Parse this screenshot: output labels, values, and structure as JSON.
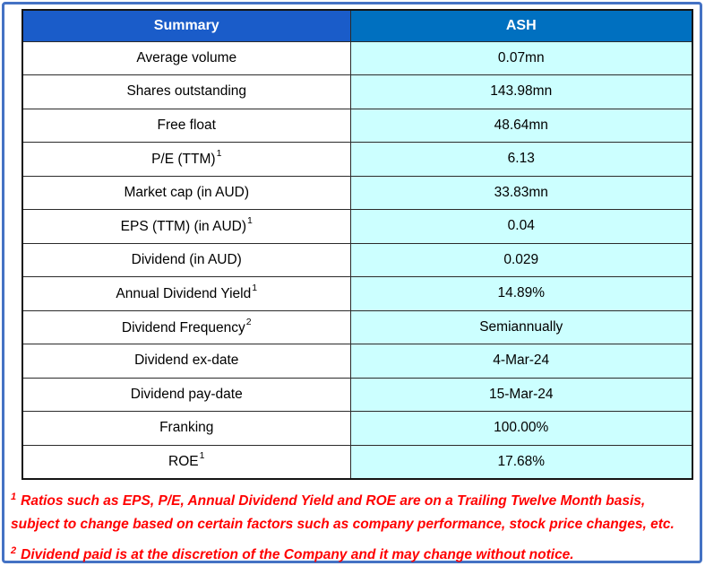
{
  "table": {
    "header": {
      "summary": "Summary",
      "ticker": "ASH"
    },
    "rows": [
      {
        "label": "Average volume",
        "sup": "",
        "value": "0.07mn"
      },
      {
        "label": "Shares outstanding",
        "sup": "",
        "value": "143.98mn"
      },
      {
        "label": "Free float",
        "sup": "",
        "value": "48.64mn"
      },
      {
        "label": "P/E (TTM)",
        "sup": "1",
        "value": "6.13"
      },
      {
        "label": "Market cap (in AUD)",
        "sup": "",
        "value": "33.83mn"
      },
      {
        "label": "EPS (TTM) (in AUD)",
        "sup": "1",
        "value": "0.04"
      },
      {
        "label": "Dividend (in AUD)",
        "sup": "",
        "value": "0.029"
      },
      {
        "label": "Annual Dividend Yield",
        "sup": "1",
        "value": "14.89%"
      },
      {
        "label": "Dividend Frequency",
        "sup": "2",
        "value": "Semiannually"
      },
      {
        "label": "Dividend ex-date",
        "sup": "",
        "value": "4-Mar-24"
      },
      {
        "label": "Dividend pay-date",
        "sup": "",
        "value": "15-Mar-24"
      },
      {
        "label": "Franking",
        "sup": "",
        "value": "100.00%"
      },
      {
        "label": "ROE",
        "sup": "1",
        "value": "17.68%"
      }
    ]
  },
  "footnotes": [
    {
      "sup": "1",
      "text": "Ratios such as EPS, P/E, Annual Dividend Yield and ROE are on a Trailing Twelve Month basis, subject to change based on certain factors such as company performance, stock price changes, etc."
    },
    {
      "sup": "2",
      "text": "Dividend paid is at the discretion of the Company and it may change without notice."
    }
  ],
  "colors": {
    "frame_blue": "#4472C4",
    "header_summary_bg": "#1A5CC9",
    "header_ticker_bg": "#0070C0",
    "header_text": "#FFFFFF",
    "label_cell_bg": "#FFFFFF",
    "value_cell_bg": "#CCFFFF",
    "cell_text": "#000000",
    "table_border": "#141414",
    "footnote_text_color": "#FF0000"
  }
}
